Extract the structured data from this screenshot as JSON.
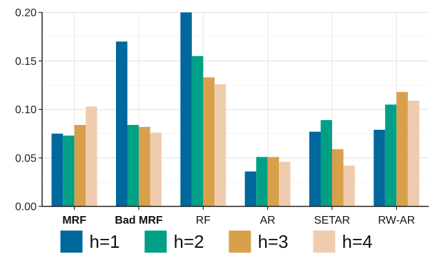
{
  "chart_data": {
    "type": "bar",
    "categories": [
      "MRF",
      "Bad MRF",
      "RF",
      "AR",
      "SETAR",
      "RW-AR"
    ],
    "bold_categories": [
      "MRF",
      "Bad MRF"
    ],
    "series": [
      {
        "name": "h=1",
        "color": "#00689C",
        "values": [
          0.075,
          0.17,
          0.2,
          0.036,
          0.077,
          0.079
        ]
      },
      {
        "name": "h=2",
        "color": "#00A087",
        "values": [
          0.073,
          0.084,
          0.155,
          0.051,
          0.089,
          0.105
        ]
      },
      {
        "name": "h=3",
        "color": "#D9A04C",
        "values": [
          0.084,
          0.082,
          0.133,
          0.051,
          0.059,
          0.118
        ]
      },
      {
        "name": "h=4",
        "color": "#F0CCAE",
        "values": [
          0.103,
          0.076,
          0.126,
          0.046,
          0.042,
          0.109
        ]
      }
    ],
    "yticks": [
      "0.00",
      "0.05",
      "0.10",
      "0.15",
      "0.20"
    ],
    "ylim": [
      0,
      0.2
    ],
    "grid": true,
    "legend_position": "bottom"
  }
}
